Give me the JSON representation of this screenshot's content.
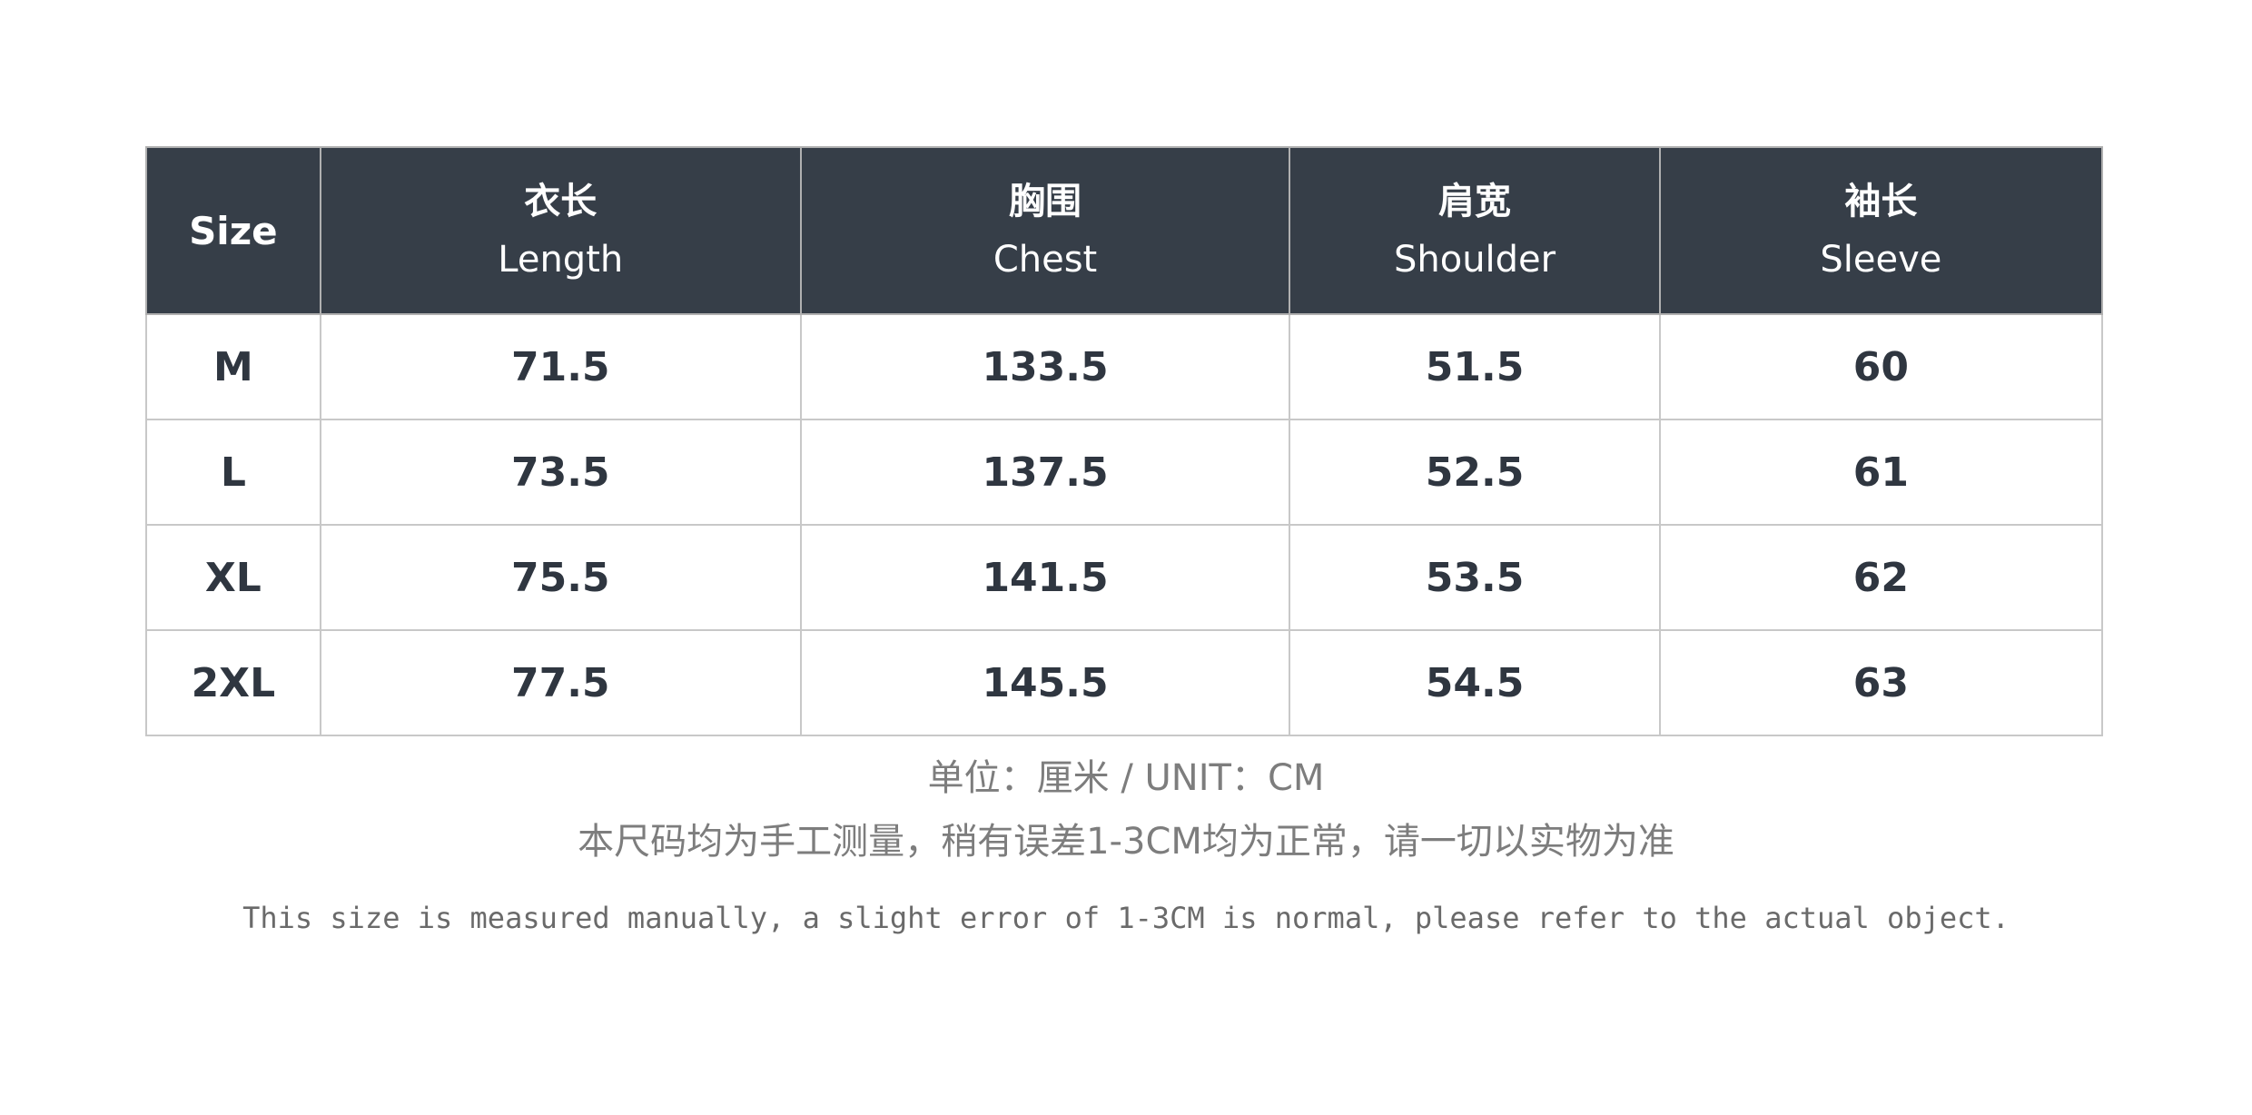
{
  "table": {
    "headers": [
      {
        "cn": "",
        "en": "Size"
      },
      {
        "cn": "衣长",
        "en": "Length"
      },
      {
        "cn": "胸围",
        "en": "Chest"
      },
      {
        "cn": "肩宽",
        "en": "Shoulder"
      },
      {
        "cn": "袖长",
        "en": "Sleeve"
      }
    ],
    "rows": [
      [
        "M",
        "71.5",
        "133.5",
        "51.5",
        "60"
      ],
      [
        "L",
        "73.5",
        "137.5",
        "52.5",
        "61"
      ],
      [
        "XL",
        "75.5",
        "141.5",
        "53.5",
        "62"
      ],
      [
        "2XL",
        "77.5",
        "145.5",
        "54.5",
        "63"
      ]
    ]
  },
  "notes": {
    "unit": "单位：厘米 /  UNIT：CM",
    "cn": "本尺码均为手工测量，稍有误差1-3CM均为正常，请一切以实物为准",
    "en": "This size is measured manually, a slight error of 1-3CM is normal, please refer to the actual object."
  },
  "colors": {
    "header_bg": "#363e48",
    "border": "#c8c8c8",
    "note_text": "#7d7d7d"
  }
}
